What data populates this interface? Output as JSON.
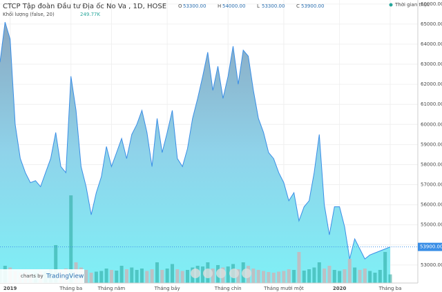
{
  "chart_data": {
    "type": "area",
    "title": "CTCP Tập đoàn Đầu tư Địa ốc No Va , 1D, HOSE",
    "ohlc": [
      {
        "name": "O",
        "value": 53300,
        "label": "53300.00"
      },
      {
        "name": "H",
        "value": 54000,
        "label": "54000.00"
      },
      {
        "name": "L",
        "value": 53300,
        "label": "53300.00"
      },
      {
        "name": "C",
        "value": 53900,
        "label": "53900.00"
      }
    ],
    "realtime": "Thời gian thực",
    "volume_label": {
      "value": 249770,
      "label": "249.77K"
    },
    "brand": [
      "charts by",
      "TradingView"
    ],
    "series": [
      {
        "color": "#3a8ee6",
        "values": [
          63100,
          65100,
          64250,
          60000,
          58300,
          57600,
          57100,
          57200,
          56900,
          57600,
          58300,
          59600,
          57900,
          57600,
          62400,
          60700,
          57900,
          56900,
          55500,
          56600,
          57400,
          58900,
          57900,
          58600,
          59300,
          58300,
          59500,
          60000,
          60700,
          59600,
          57900,
          60300,
          58600,
          59600,
          60700,
          58300,
          57900,
          58800,
          60300,
          61300,
          62400,
          63600,
          61700,
          62900,
          61300,
          62400,
          63900,
          62000,
          63700,
          63400,
          61700,
          60300,
          59600,
          58600,
          58300,
          57600,
          57100,
          56200,
          56600,
          55200,
          55900,
          56200,
          57600,
          59500,
          56000,
          54500,
          55900,
          55900,
          54900,
          53300,
          54300,
          53800,
          53300,
          53500,
          53600,
          53700,
          53800,
          53900
        ]
      },
      {
        "name": "Khối lượng (false, 20)",
        "color": "#26a69a",
        "values": [
          400000,
          500000,
          450000,
          350000,
          300000,
          320000,
          280000,
          300000,
          350000,
          330000,
          400000,
          1100000,
          380000,
          420000,
          2540000,
          600000,
          450000,
          380000,
          300000,
          330000,
          350000,
          420000,
          380000,
          360000,
          500000,
          400000,
          450000,
          380000,
          420000,
          350000,
          400000,
          600000,
          380000,
          420000,
          550000,
          400000,
          350000,
          380000,
          450000,
          500000,
          480000,
          600000,
          420000,
          520000,
          450000,
          480000,
          550000,
          400000,
          600000,
          500000,
          420000,
          380000,
          350000,
          320000,
          300000,
          330000,
          350000,
          400000,
          380000,
          900000,
          360000,
          400000,
          450000,
          600000,
          420000,
          500000,
          380000,
          350000,
          400000,
          700000,
          450000,
          380000,
          420000,
          350000,
          300000,
          380000,
          900000,
          249770
        ]
      }
    ],
    "ylim": [
      52100,
      66200
    ],
    "yticks": [
      {
        "value": 53000,
        "label": "53000.00"
      },
      {
        "value": 54000,
        "label": "54000.00"
      },
      {
        "value": 55000,
        "label": "55000.00"
      },
      {
        "value": 56000,
        "label": "56000.00"
      },
      {
        "value": 57000,
        "label": "57000.00"
      },
      {
        "value": 58000,
        "label": "58000.00"
      },
      {
        "value": 59000,
        "label": "59000.00"
      },
      {
        "value": 60000,
        "label": "60000.00"
      },
      {
        "value": 61000,
        "label": "61000.00"
      },
      {
        "value": 62000,
        "label": "62000.00"
      },
      {
        "value": 63000,
        "label": "63000.00"
      },
      {
        "value": 64000,
        "label": "64000.00"
      },
      {
        "value": 65000,
        "label": "65000.00"
      },
      {
        "value": 66000,
        "label": "66000.00"
      }
    ],
    "xticks": [
      {
        "value": 2,
        "label": "2019"
      },
      {
        "value": 14,
        "label": "Tháng ba"
      },
      {
        "value": 22,
        "label": "Tháng năm"
      },
      {
        "value": 33,
        "label": "Tháng bảy"
      },
      {
        "value": 45,
        "label": "Tháng chín"
      },
      {
        "value": 56,
        "label": "Tháng mười một"
      },
      {
        "value": 67,
        "label": "2020"
      },
      {
        "value": 77,
        "label": "Tháng ba"
      }
    ],
    "grid": true
  }
}
